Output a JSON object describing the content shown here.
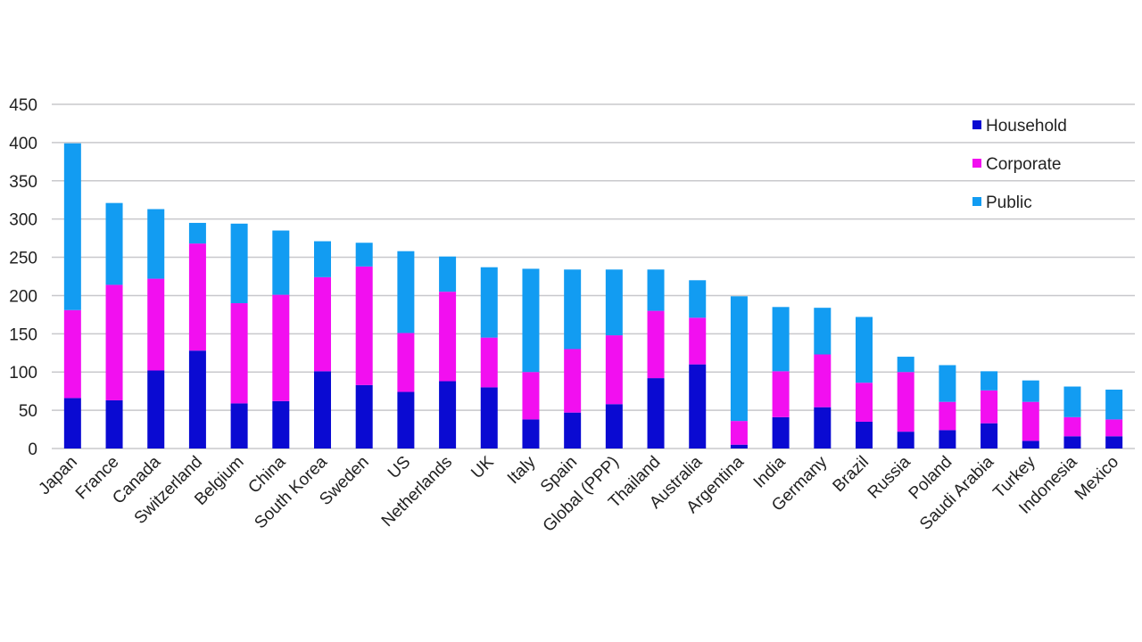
{
  "chart_data": {
    "type": "bar",
    "stacked": true,
    "categories": [
      "Japan",
      "France",
      "Canada",
      "Switzerland",
      "Belgium",
      "China",
      "South Korea",
      "Sweden",
      "US",
      "Netherlands",
      "UK",
      "Italy",
      "Spain",
      "Global (PPP)",
      "Thailand",
      "Australia",
      "Argentina",
      "India",
      "Germany",
      "Brazil",
      "Russia",
      "Poland",
      "Saudi Arabia",
      "Turkey",
      "Indonesia",
      "Mexico"
    ],
    "series": [
      {
        "name": "Household",
        "color": "#0a0ad2",
        "values": [
          66,
          63,
          102,
          128,
          59,
          62,
          101,
          83,
          74,
          88,
          80,
          38,
          47,
          58,
          92,
          110,
          5,
          41,
          54,
          35,
          22,
          24,
          33,
          10,
          16,
          16
        ]
      },
      {
        "name": "Corporate",
        "color": "#f20ff0",
        "values": [
          115,
          151,
          120,
          140,
          131,
          139,
          123,
          155,
          77,
          117,
          65,
          62,
          83,
          90,
          88,
          61,
          31,
          60,
          69,
          51,
          78,
          37,
          43,
          51,
          25,
          22
        ]
      },
      {
        "name": "Public",
        "color": "#129cf2",
        "values": [
          218,
          107,
          91,
          27,
          104,
          84,
          47,
          31,
          107,
          46,
          92,
          135,
          104,
          86,
          54,
          49,
          163,
          84,
          61,
          86,
          20,
          48,
          25,
          28,
          40,
          39
        ]
      }
    ],
    "title": "",
    "xlabel": "",
    "ylabel": "",
    "ylim": [
      0,
      450
    ],
    "yticks": [
      0,
      50,
      100,
      150,
      200,
      250,
      300,
      350,
      400,
      450
    ],
    "grid": true,
    "legend_position": "top-right"
  }
}
